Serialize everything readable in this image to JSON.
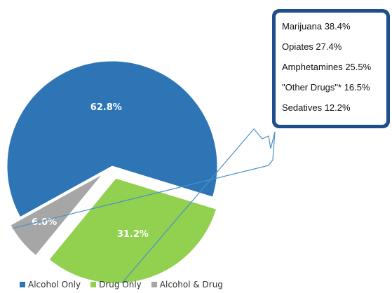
{
  "chart_data": {
    "type": "pie",
    "slices": [
      {
        "label": "Alcohol Only",
        "value": 62.8,
        "display": "62.8%",
        "color": "#2e75b6",
        "exploded": false
      },
      {
        "label": "Drug Only",
        "value": 31.2,
        "display": "31.2%",
        "color": "#92d050",
        "exploded": true
      },
      {
        "label": "Alcohol & Drug",
        "value": 6.0,
        "display": "6.0%",
        "color": "#a6a6a6",
        "exploded": true
      }
    ],
    "legend_position": "bottom",
    "title": "",
    "breakdown": {
      "of": "Drug Only",
      "items": [
        {
          "text": "Marijuana 38.4%",
          "label": "Marijuana",
          "value": 38.4
        },
        {
          "text": "Opiates 27.4%",
          "label": "Opiates",
          "value": 27.4
        },
        {
          "text": "Amphetamines 25.5%",
          "label": "Amphetamines",
          "value": 25.5
        },
        {
          "text": "\"Other Drugs\"* 16.5%",
          "label": "\"Other Drugs\"*",
          "value": 16.5
        },
        {
          "text": "Sedatives 12.2%",
          "label": "Sedatives",
          "value": 12.2
        }
      ],
      "border_color": "#1f4e8c",
      "connector_color": "#4a90c8"
    }
  }
}
